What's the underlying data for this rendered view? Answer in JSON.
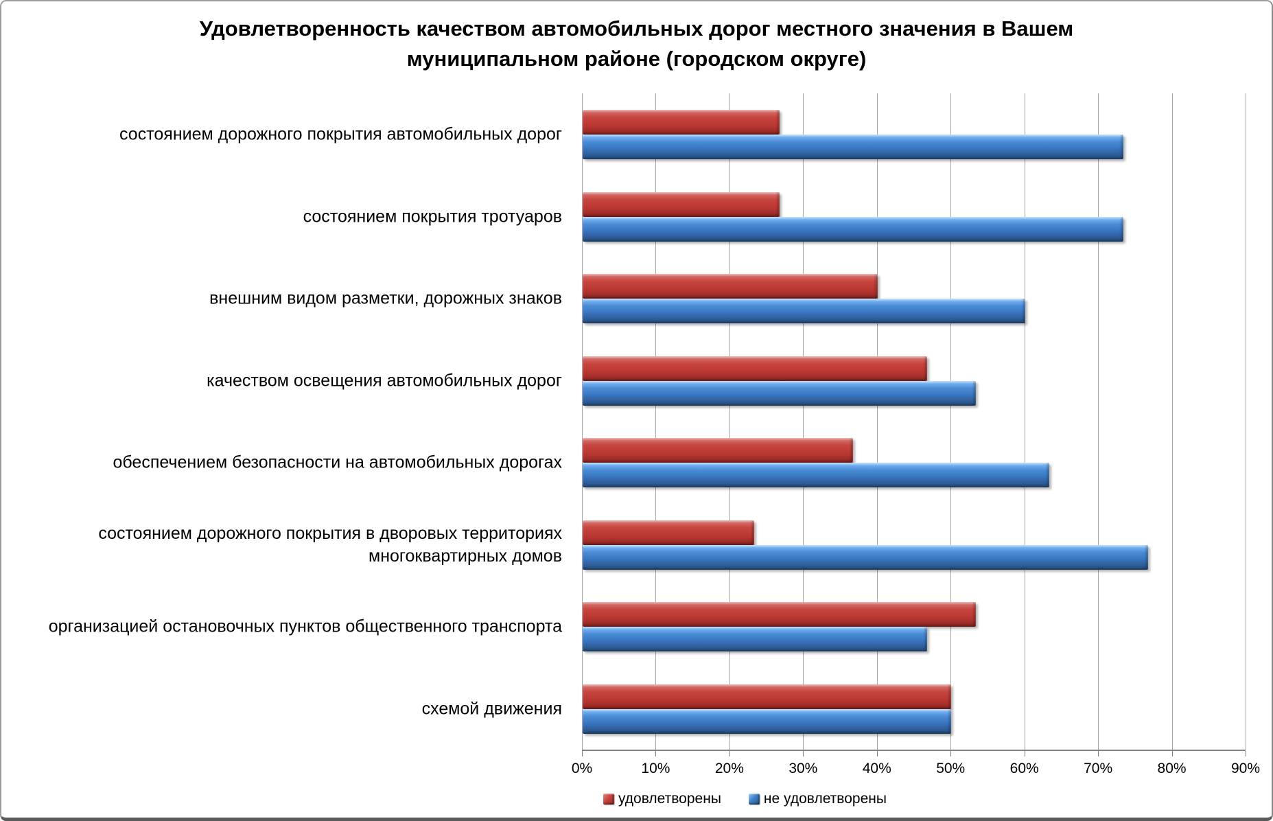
{
  "chart_data": {
    "type": "bar",
    "orientation": "horizontal",
    "title": "Удовлетворенность качеством автомобильных дорог местного значения в Вашем муниципальном районе (городском округе)",
    "categories": [
      "состоянием дорожного покрытия автомобильных дорог",
      "состоянием покрытия тротуаров",
      "внешним видом разметки, дорожных знаков",
      "качеством освещения автомобильных дорог",
      "обеспечением безопасности на автомобильных дорогах",
      "состоянием дорожного покрытия в дворовых территориях многоквартирных домов",
      "организацией остановочных пунктов общественного транспорта",
      "схемой движения"
    ],
    "series": [
      {
        "name": "удовлетворены",
        "color": "#c13c37",
        "values": [
          26.7,
          26.7,
          40.0,
          46.7,
          36.7,
          23.3,
          53.3,
          50.0
        ]
      },
      {
        "name": "не удовлетворены",
        "color": "#3c7cc7",
        "values": [
          73.3,
          73.3,
          60.0,
          53.3,
          63.3,
          76.7,
          46.7,
          50.0
        ]
      }
    ],
    "x_ticks": [
      "0%",
      "10%",
      "20%",
      "30%",
      "40%",
      "50%",
      "60%",
      "70%",
      "80%",
      "90%"
    ],
    "xlim": [
      0,
      90
    ],
    "grid": "vertical",
    "legend_position": "bottom"
  },
  "colors": {
    "background": "#ffffff",
    "gridline": "#a6a6a6",
    "axis_line": "#808080",
    "frame_border": "#9e9e9e",
    "frame_border_bottom": "#5a5a5a"
  }
}
